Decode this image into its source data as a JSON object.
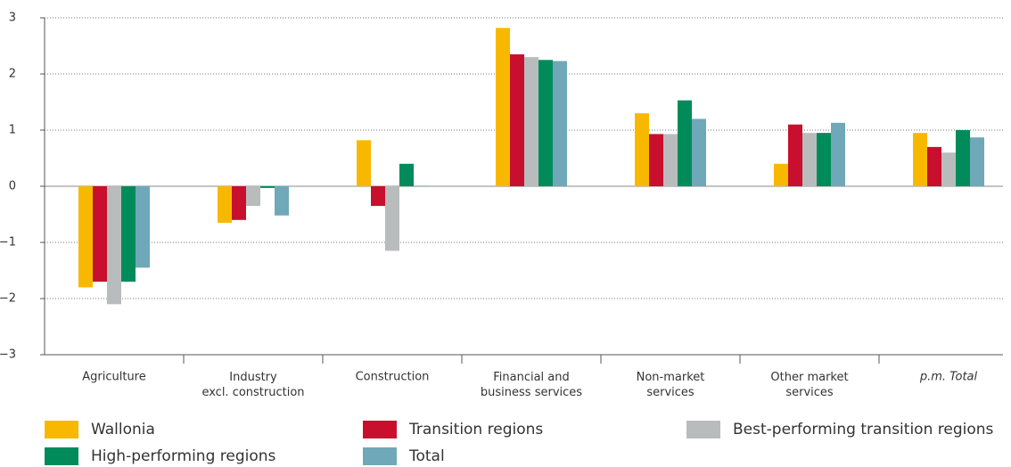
{
  "chart_data": {
    "type": "bar",
    "categories": [
      "Agriculture",
      "Industry\nexcl. construction",
      "Construction",
      "Financial and\nbusiness services",
      "Non-market\nservices",
      "Other market\nservices",
      "p.m. Total"
    ],
    "series": [
      {
        "name": "Wallonia",
        "color": "#f9b800",
        "values": [
          -1.8,
          -0.65,
          0.82,
          2.82,
          1.3,
          0.4,
          0.95
        ]
      },
      {
        "name": "Transition regions",
        "color": "#c8102e",
        "values": [
          -1.7,
          -0.6,
          -0.35,
          2.35,
          0.93,
          1.1,
          0.7
        ]
      },
      {
        "name": "Best-performing transition regions",
        "color": "#b9bcbd",
        "values": [
          -2.1,
          -0.35,
          -1.15,
          2.3,
          0.93,
          0.95,
          0.6
        ]
      },
      {
        "name": "High-performing regions",
        "color": "#008c5a",
        "values": [
          -1.7,
          -0.03,
          0.4,
          2.25,
          1.53,
          0.95,
          1.0
        ]
      },
      {
        "name": "Total",
        "color": "#6fa8b8",
        "values": [
          -1.45,
          -0.52,
          0.01,
          2.23,
          1.2,
          1.13,
          0.87
        ]
      }
    ],
    "ylim": [
      -3,
      3
    ],
    "yticks": [
      {
        "value": -3,
        "label": "−3"
      },
      {
        "value": -2,
        "label": "−2"
      },
      {
        "value": -1,
        "label": "−1"
      },
      0,
      1,
      2,
      3
    ],
    "grid": true
  }
}
